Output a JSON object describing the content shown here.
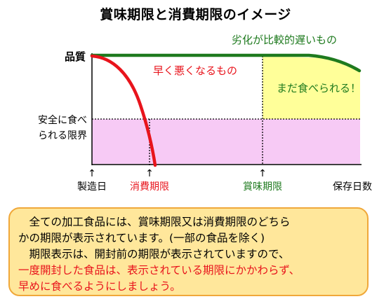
{
  "title": "賞味期限と消費期限のイメージ",
  "chart": {
    "y_label_quality": "品質",
    "y_label_safe_line": [
      "安全に食べ",
      "られる限界"
    ],
    "curve_fast": "早く悪くなるもの",
    "curve_slow": "劣化が比較的遅いもの",
    "still_edible": "まだ食べられる！",
    "x_labels": {
      "origin": "製造日",
      "consume_by": "消費期限",
      "best_before": "賞味期限",
      "axis": "保存日数"
    },
    "arrow_glyph": "↑"
  },
  "colors": {
    "fast_curve": "#e8141c",
    "slow_curve": "#1e7a1e",
    "safe_zone": "#f7caf5",
    "edible_zone": "#ffff99",
    "box_bg": "#ffe79b",
    "box_border": "#f0a83a"
  },
  "note": {
    "line1": "全ての加工食品には、賞味期限又は消費期限のどちら",
    "line2": "かの期限が表示されています。(一部の食品を除く)",
    "line3": "期限表示は、開封前の期限が表示されていますので、",
    "line4": "一度開封した食品は、表示されている期限にかかわらず、",
    "line5": "早めに食べるようにしましょう。"
  }
}
